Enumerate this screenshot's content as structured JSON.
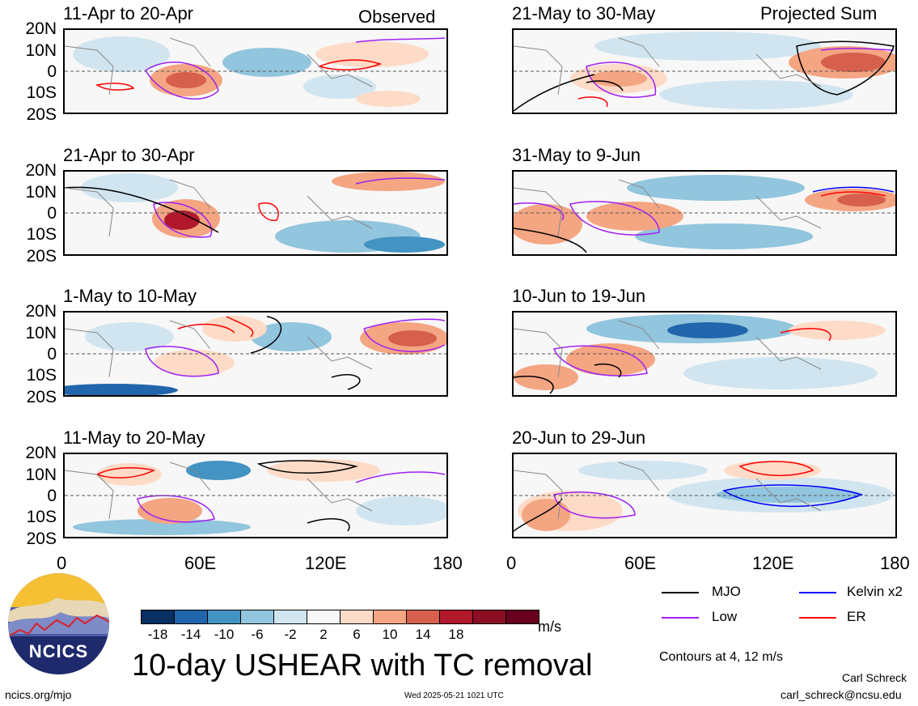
{
  "panels_left": [
    {
      "period": "11-Apr to 20-Apr",
      "tag": "Observed"
    },
    {
      "period": "21-Apr to 30-Apr",
      "tag": ""
    },
    {
      "period": "1-May to 10-May",
      "tag": ""
    },
    {
      "period": "11-May to 20-May",
      "tag": ""
    }
  ],
  "panels_right": [
    {
      "period": "21-May to 30-May",
      "tag": "Projected Sum"
    },
    {
      "period": "31-May to 9-Jun",
      "tag": ""
    },
    {
      "period": "10-Jun to 19-Jun",
      "tag": ""
    },
    {
      "period": "20-Jun to 29-Jun",
      "tag": ""
    }
  ],
  "lat_labels": [
    "20N",
    "10N",
    "0",
    "10S",
    "20S"
  ],
  "lon_labels": [
    "0",
    "60E",
    "120E",
    "180"
  ],
  "legend": {
    "items": [
      {
        "label": "MJO",
        "color": "#000000"
      },
      {
        "label": "Kelvin x2",
        "color": "#0000ff"
      },
      {
        "label": "Low",
        "color": "#a020f0"
      },
      {
        "label": "ER",
        "color": "#ff0000"
      }
    ],
    "contours_note": "Contours at 4, 12 m/s"
  },
  "colorbar": {
    "colors": [
      "#053061",
      "#2166ac",
      "#4393c3",
      "#92c5de",
      "#d1e5f0",
      "#f7f7f7",
      "#fddbc7",
      "#f4a582",
      "#d6604d",
      "#b2182b",
      "#8b0f24",
      "#67001f"
    ],
    "labels": [
      "-18",
      "-14",
      "-10",
      "-6",
      "-2",
      "2",
      "6",
      "10",
      "14",
      "18"
    ],
    "units": "m/s"
  },
  "logo": {
    "text": "NCICS"
  },
  "title": "10-day USHEAR with TC removal",
  "footer": {
    "left": "ncics.org/mjo",
    "center": "Wed 2025-05-21 1021 UTC",
    "author": "Carl Schreck",
    "email": "carl_schreck@ncsu.edu"
  }
}
